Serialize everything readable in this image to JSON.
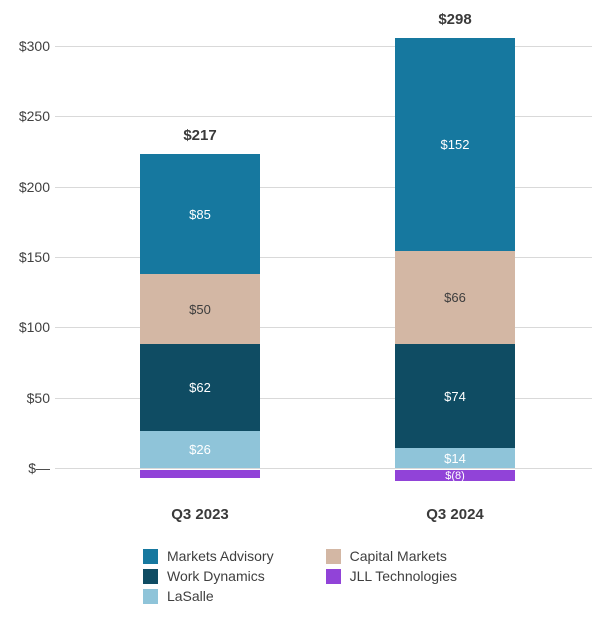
{
  "chart_data": {
    "type": "bar",
    "stacked": true,
    "title": "",
    "xlabel": "",
    "ylabel": "",
    "ylim": [
      0,
      300
    ],
    "grid": true,
    "legend_position": "bottom",
    "categories": [
      "Q3 2023",
      "Q3 2024"
    ],
    "y_ticks": [
      "$300",
      "$250",
      "$200",
      "$150",
      "$100",
      "$50",
      "$—"
    ],
    "y_tick_values": [
      300,
      250,
      200,
      150,
      100,
      50,
      0
    ],
    "totals": [
      "$217",
      "$298"
    ],
    "series": [
      {
        "name": "Markets Advisory",
        "color": "#16789f",
        "label_color": "#ffffff",
        "values": [
          85,
          152
        ],
        "labels": [
          "$85",
          "$152"
        ]
      },
      {
        "name": "Capital Markets",
        "color": "#d3b7a4",
        "label_color": "#3d3d3d",
        "values": [
          50,
          66
        ],
        "labels": [
          "$50",
          "$66"
        ]
      },
      {
        "name": "Work Dynamics",
        "color": "#0f4c63",
        "label_color": "#ffffff",
        "values": [
          62,
          74
        ],
        "labels": [
          "$62",
          "$74"
        ]
      },
      {
        "name": "LaSalle",
        "color": "#8fc4d9",
        "label_color": "#ffffff",
        "values": [
          26,
          14
        ],
        "labels": [
          "$26",
          "$14"
        ]
      },
      {
        "name": "JLL Technologies",
        "color": "#9143d8",
        "label_color": "#ffffff",
        "values": [
          -6,
          -8
        ],
        "labels": [
          "",
          "$(8)"
        ]
      }
    ]
  },
  "legend": {
    "items": [
      {
        "label": "Markets Advisory",
        "color": "#16789f"
      },
      {
        "label": "Capital Markets",
        "color": "#d3b7a4"
      },
      {
        "label": "Work Dynamics",
        "color": "#0f4c63"
      },
      {
        "label": "JLL Technologies",
        "color": "#9143d8"
      },
      {
        "label": "LaSalle",
        "color": "#8fc4d9"
      }
    ]
  }
}
